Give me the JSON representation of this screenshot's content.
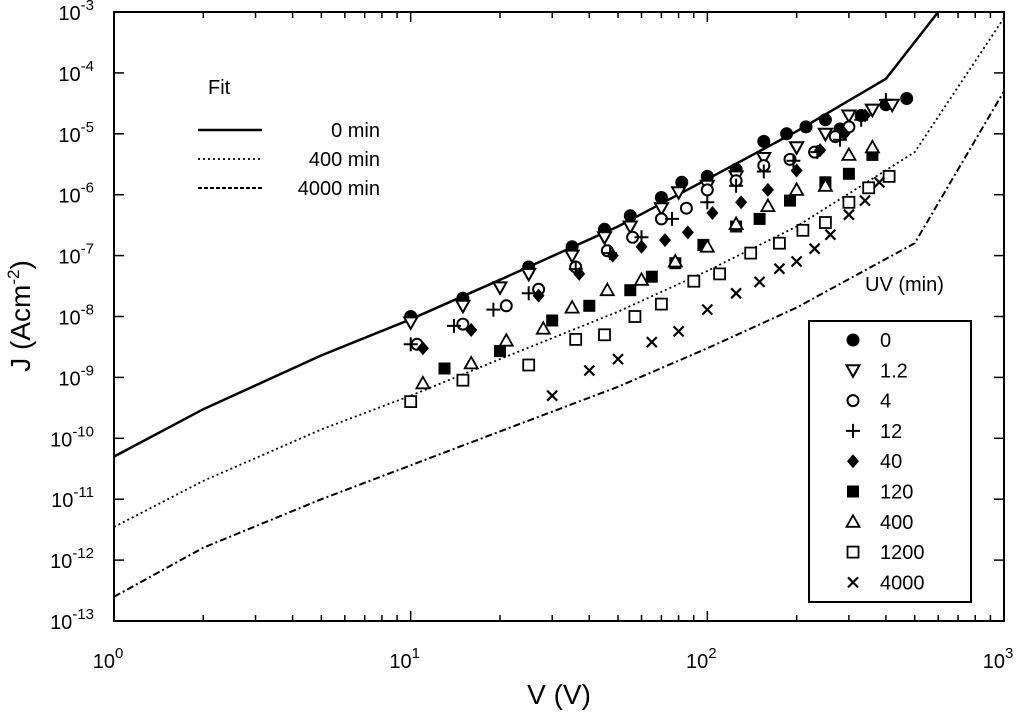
{
  "chart_data": {
    "type": "scatter",
    "title": "",
    "xlabel": "V (V)",
    "ylabel_parts": {
      "base": "J (Acm",
      "sup": "-2",
      "close": ")"
    },
    "x_scale": "log",
    "y_scale": "log",
    "xlim": [
      1,
      1000
    ],
    "ylim": [
      1e-13,
      0.001
    ],
    "x_ticks": [
      {
        "base": "10",
        "exp": "0",
        "value": 1
      },
      {
        "base": "10",
        "exp": "1",
        "value": 10
      },
      {
        "base": "10",
        "exp": "2",
        "value": 100
      },
      {
        "base": "10",
        "exp": "3",
        "value": 1000
      }
    ],
    "y_ticks": [
      {
        "base": "10",
        "exp": "-13",
        "value": 1e-13
      },
      {
        "base": "10",
        "exp": "-12",
        "value": 1e-12
      },
      {
        "base": "10",
        "exp": "-11",
        "value": 1e-11
      },
      {
        "base": "10",
        "exp": "-10",
        "value": 1e-10
      },
      {
        "base": "10",
        "exp": "-9",
        "value": 1e-09
      },
      {
        "base": "10",
        "exp": "-8",
        "value": 1e-08
      },
      {
        "base": "10",
        "exp": "-7",
        "value": 1e-07
      },
      {
        "base": "10",
        "exp": "-6",
        "value": 1e-06
      },
      {
        "base": "10",
        "exp": "-5",
        "value": 1e-05
      },
      {
        "base": "10",
        "exp": "-4",
        "value": 0.0001
      },
      {
        "base": "10",
        "exp": "-3",
        "value": 0.001
      }
    ],
    "fit_legend_title": "Fit",
    "fits": [
      {
        "name": "0 min",
        "style": "solid",
        "x": [
          1,
          2,
          5,
          10,
          20,
          50,
          100,
          200,
          400,
          600
        ],
        "y": [
          5e-11,
          3e-10,
          2.3e-09,
          9e-09,
          4e-08,
          3e-07,
          1.8e-06,
          1.1e-05,
          8e-05,
          0.001
        ]
      },
      {
        "name": "400 min",
        "style": "dotted",
        "x": [
          1,
          2,
          5,
          10,
          20,
          50,
          100,
          200,
          500,
          1000
        ],
        "y": [
          3.5e-12,
          2e-11,
          1.4e-10,
          5e-10,
          2e-09,
          1.2e-08,
          5.6e-08,
          3e-07,
          5e-06,
          0.0008
        ]
      },
      {
        "name": "4000 min",
        "style": "dashdot",
        "x": [
          1,
          2,
          5,
          10,
          20,
          50,
          100,
          200,
          500,
          1000
        ],
        "y": [
          2.5e-13,
          1.6e-12,
          1e-11,
          3.6e-11,
          1.3e-10,
          7e-10,
          3e-09,
          1.4e-08,
          1.6e-07,
          5e-05
        ]
      }
    ],
    "uv_legend_title": "UV (min)",
    "series": [
      {
        "name": "0",
        "marker": "filled-circle",
        "x": [
          10,
          15,
          25,
          35,
          45,
          55,
          70,
          82,
          100,
          125,
          155,
          185,
          215,
          250,
          280,
          330,
          400,
          470
        ],
        "y": [
          1e-08,
          2e-08,
          6.5e-08,
          1.4e-07,
          2.7e-07,
          4.5e-07,
          9e-07,
          1.6e-06,
          2e-06,
          2.6e-06,
          7.5e-06,
          1e-05,
          1.3e-05,
          1.7e-05,
          1.2e-05,
          2e-05,
          3e-05,
          3.8e-05
        ]
      },
      {
        "name": "1.2",
        "marker": "open-triangle-down",
        "x": [
          10,
          15,
          20,
          25,
          35,
          45,
          55,
          70,
          80,
          100,
          125,
          155,
          200,
          250,
          300,
          360,
          420
        ],
        "y": [
          8e-09,
          1.5e-08,
          3e-08,
          5e-08,
          1e-07,
          2e-07,
          3e-07,
          6e-07,
          1.1e-06,
          1.4e-06,
          2e-06,
          4e-06,
          6e-06,
          1e-05,
          2e-05,
          2.5e-05,
          3e-05
        ]
      },
      {
        "name": "4",
        "marker": "open-circle",
        "x": [
          10.5,
          15,
          21,
          27,
          36,
          46,
          56,
          70,
          85,
          100,
          125,
          155,
          190,
          230,
          270,
          300
        ],
        "y": [
          3.5e-09,
          7.5e-09,
          1.5e-08,
          2.8e-08,
          6.5e-08,
          1.2e-07,
          2e-07,
          4e-07,
          6e-07,
          1.2e-06,
          1.7e-06,
          3e-06,
          3.8e-06,
          5e-06,
          9e-06,
          1.3e-05
        ]
      },
      {
        "name": "12",
        "marker": "plus",
        "x": [
          10,
          14,
          19,
          25,
          36,
          47,
          60,
          76,
          100,
          125,
          155,
          195,
          235,
          280,
          330,
          400
        ],
        "y": [
          3.5e-09,
          7e-09,
          1.3e-08,
          2.4e-08,
          6e-08,
          1.1e-07,
          2e-07,
          4e-07,
          7.5e-07,
          1.4e-06,
          2.4e-06,
          3.6e-06,
          5e-06,
          8e-06,
          1.7e-05,
          3.6e-05
        ]
      },
      {
        "name": "40",
        "marker": "filled-diamond",
        "x": [
          11,
          16,
          27,
          37,
          48,
          60,
          72,
          86,
          104,
          130,
          160,
          200,
          240,
          290,
          340
        ],
        "y": [
          3e-09,
          6e-09,
          2.2e-08,
          5e-08,
          1e-07,
          1.4e-07,
          1.8e-07,
          2.4e-07,
          5e-07,
          7.5e-07,
          1.2e-06,
          2.5e-06,
          5.4e-06,
          1e-05,
          2e-05
        ]
      },
      {
        "name": "120",
        "marker": "filled-square",
        "x": [
          13,
          20,
          30,
          40,
          55,
          65,
          78,
          97,
          125,
          150,
          190,
          250,
          300,
          360
        ],
        "y": [
          1.4e-09,
          2.7e-09,
          8.6e-09,
          1.5e-08,
          2.7e-08,
          4.5e-08,
          7.5e-08,
          1.5e-07,
          3e-07,
          4e-07,
          8e-07,
          1.6e-06,
          2.2e-06,
          4.5e-06
        ]
      },
      {
        "name": "400",
        "marker": "open-triangle-up",
        "x": [
          11,
          16,
          21,
          28,
          35,
          46,
          60,
          78,
          100,
          125,
          160,
          200,
          250,
          300,
          360
        ],
        "y": [
          8e-10,
          1.7e-09,
          4e-09,
          6.3e-09,
          1.4e-08,
          2.7e-08,
          4e-08,
          8e-08,
          1.4e-07,
          3.3e-07,
          6.5e-07,
          1.2e-06,
          1.4e-06,
          4.5e-06,
          6e-06
        ]
      },
      {
        "name": "1200",
        "marker": "open-square",
        "x": [
          10,
          15,
          25,
          36,
          45,
          57,
          70,
          90,
          110,
          140,
          175,
          210,
          250,
          300,
          350,
          410
        ],
        "y": [
          4e-10,
          9e-10,
          1.6e-09,
          4.2e-09,
          5e-09,
          1e-08,
          1.6e-08,
          3.8e-08,
          5e-08,
          1.1e-07,
          1.6e-07,
          2.6e-07,
          3.5e-07,
          7.5e-07,
          1.3e-06,
          2e-06
        ]
      },
      {
        "name": "4000",
        "marker": "cross",
        "x": [
          30,
          40,
          50,
          65,
          80,
          100,
          125,
          150,
          175,
          200,
          230,
          260,
          300,
          340,
          380
        ],
        "y": [
          5e-10,
          1.3e-09,
          2e-09,
          3.8e-09,
          5.7e-09,
          1.3e-08,
          2.4e-08,
          3.7e-08,
          6.1e-08,
          8e-08,
          1.3e-07,
          2.2e-07,
          4.7e-07,
          8e-07,
          1.6e-06
        ]
      }
    ]
  }
}
